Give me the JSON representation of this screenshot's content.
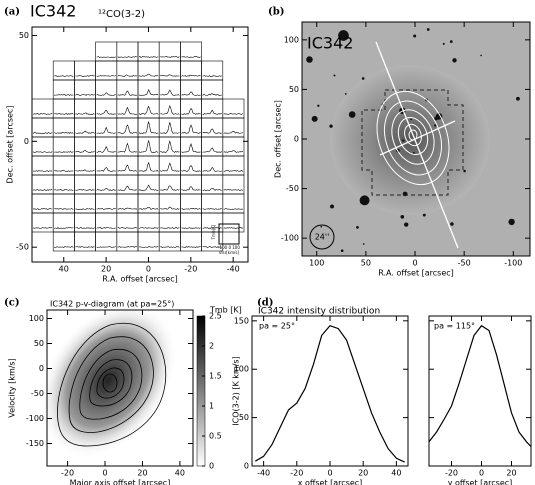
{
  "chart_data": [
    {
      "type": "spectra-grid",
      "panel": "(a)",
      "title": "IC342",
      "subtitle": "¹²CO(3-2)",
      "xlabel": "R.A. offset [arcsec]",
      "ylabel": "Dec. offset [arcsec]",
      "xlim": [
        55,
        -47
      ],
      "xticks": [
        40,
        20,
        0,
        -20,
        -40
      ],
      "ylim": [
        -57,
        54
      ],
      "yticks": [
        50,
        0,
        -50
      ],
      "inset_labels": [
        "Tmb[K]",
        "-100 0 100",
        "vlsr[km/s]"
      ]
    },
    {
      "type": "image",
      "panel": "(b)",
      "title": "IC342",
      "beam_label": "24''",
      "xlabel": "R.A. offset [arcsec]",
      "ylabel": "Dec. offset [arcsec]",
      "xlim": [
        115,
        -117
      ],
      "xticks": [
        100,
        50,
        0,
        -50,
        -100
      ],
      "ylim": [
        -118,
        118
      ],
      "yticks": [
        -100,
        -50,
        0,
        50,
        100
      ]
    },
    {
      "type": "contour",
      "panel": "(c)",
      "title": "IC342   p-v-diagram (at pa=25°)",
      "xlabel": "Major axis offset [arcsec]",
      "ylabel": "Velocity [km/s]",
      "xlim": [
        -31,
        47
      ],
      "xticks": [
        -20,
        0,
        20,
        40
      ],
      "ylim": [
        -195,
        117
      ],
      "yticks": [
        -150,
        -100,
        -50,
        0,
        50,
        100
      ],
      "colorbar_label": "Tmb [K]",
      "clim": [
        0,
        2.5
      ],
      "cticks": [
        0,
        0.5,
        1,
        1.5,
        2,
        2.5
      ]
    },
    {
      "type": "line",
      "panel": "(d)",
      "title": "IC342   intensity distribution",
      "ylabel": "ICO(3-2) [K km/s]",
      "annotation": "pa = 25°",
      "xlabel": "x offset [arcsec]",
      "x": [
        -45,
        -40,
        -35,
        -30,
        -25,
        -20,
        -15,
        -10,
        -5,
        0,
        5,
        10,
        15,
        20,
        25,
        30,
        35,
        40,
        45
      ],
      "values": [
        5,
        10,
        22,
        40,
        58,
        65,
        80,
        105,
        135,
        145,
        142,
        130,
        105,
        80,
        55,
        35,
        18,
        8,
        4
      ],
      "xlim": [
        -47,
        47
      ],
      "xticks": [
        -40,
        -20,
        0,
        20,
        40
      ],
      "ylim": [
        0,
        155
      ],
      "yticks": [
        0,
        50,
        100,
        150
      ]
    },
    {
      "type": "line",
      "annotation": "pa = 115°",
      "xlabel": "y offset [arcsec]",
      "x": [
        -35,
        -30,
        -25,
        -20,
        -15,
        -10,
        -5,
        0,
        5,
        10,
        15,
        20,
        25,
        30,
        33
      ],
      "values": [
        25,
        35,
        48,
        62,
        85,
        110,
        135,
        145,
        140,
        115,
        85,
        55,
        35,
        25,
        20
      ],
      "xlim": [
        -35,
        33
      ],
      "xticks": [
        -20,
        0,
        20
      ],
      "ylim": [
        0,
        155
      ],
      "yticks": [
        0,
        50,
        100,
        150
      ],
      "show_ytick_labels": false
    }
  ]
}
